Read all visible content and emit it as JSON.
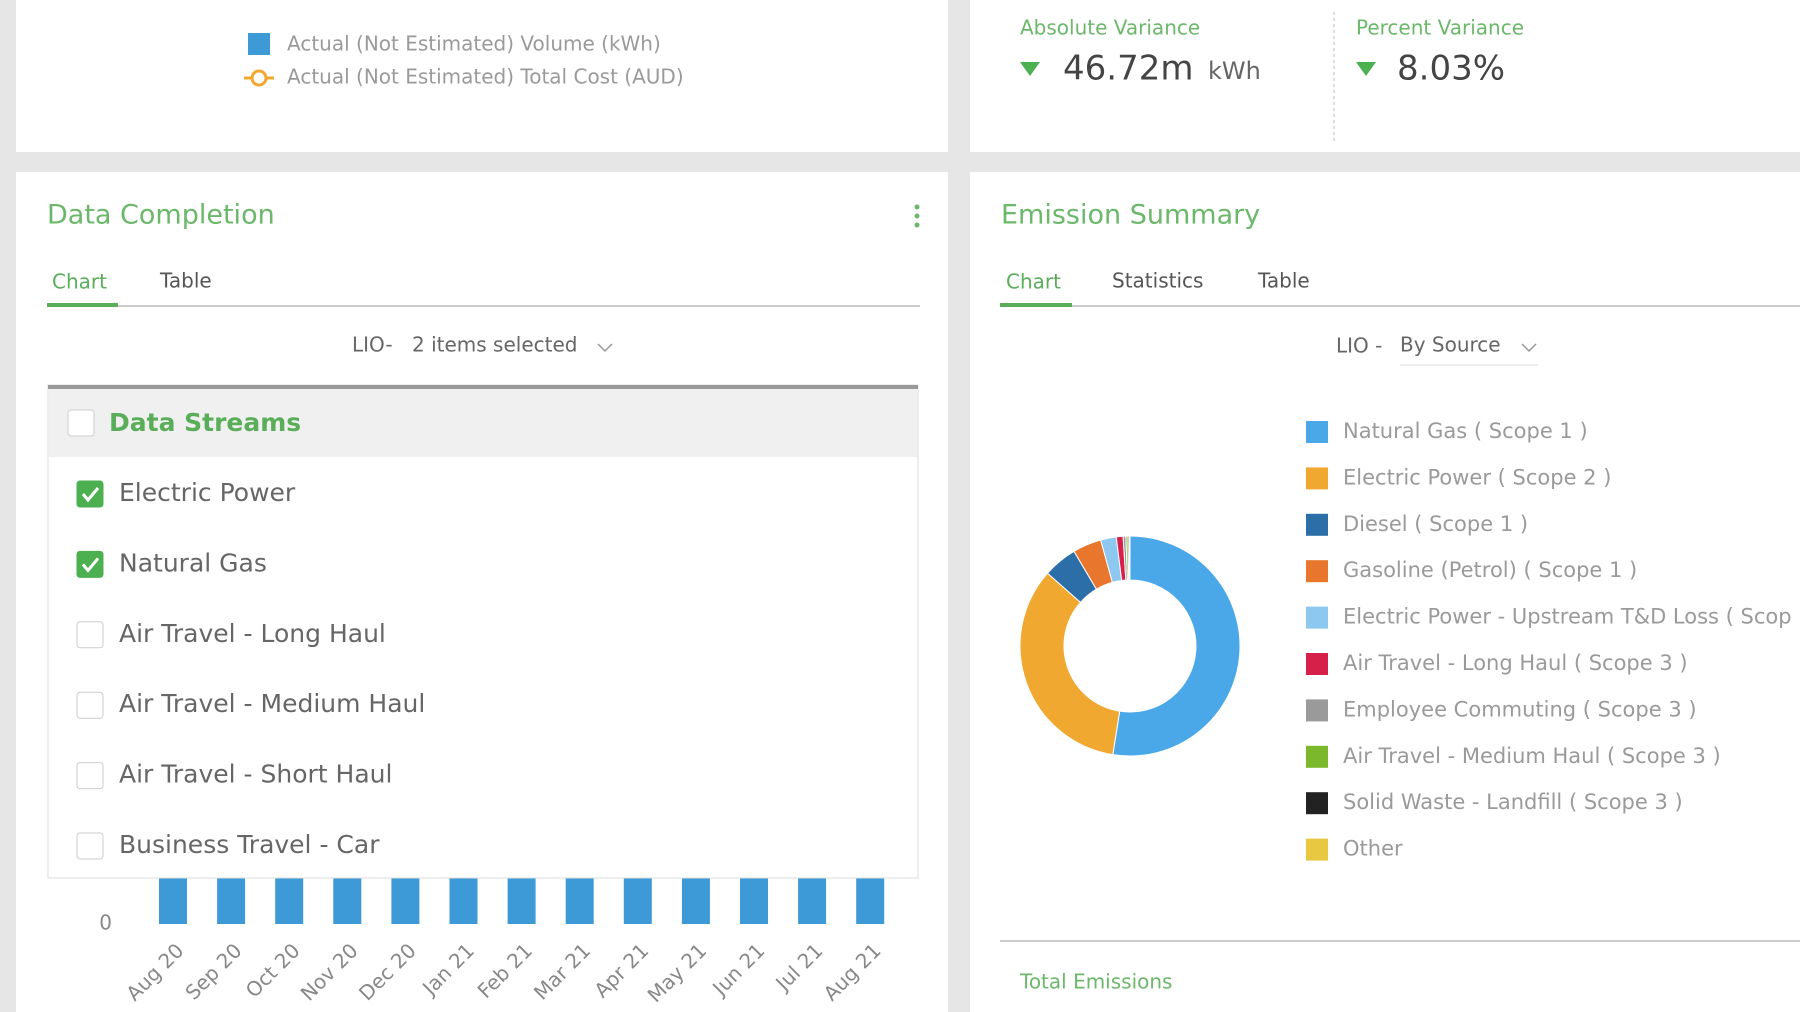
{
  "top_left": {
    "legend": [
      "Actual (Not Estimated) Volume (kWh)",
      "Actual (Not Estimated) Total Cost (AUD)"
    ]
  },
  "variance": {
    "absolute": {
      "label": "Absolute Variance",
      "value": "46.72m",
      "unit": "kWh"
    },
    "percent": {
      "label": "Percent Variance",
      "value": "8.03%"
    }
  },
  "data_completion": {
    "title": "Data Completion",
    "tabs": [
      "Chart",
      "Table"
    ],
    "filter_label": "LIO-",
    "filter_value": "2 items selected",
    "dropdown": {
      "header": "Data Streams",
      "items": [
        {
          "label": "Electric Power",
          "checked": true
        },
        {
          "label": "Natural Gas",
          "checked": true
        },
        {
          "label": "Air Travel - Long Haul",
          "checked": false
        },
        {
          "label": "Air Travel - Medium Haul",
          "checked": false
        },
        {
          "label": "Air Travel - Short Haul",
          "checked": false
        },
        {
          "label": "Business Travel - Car",
          "checked": false
        }
      ]
    },
    "chart": {
      "type": "bar",
      "categories": [
        "Aug 20",
        "Sep 20",
        "Oct 20",
        "Nov 20",
        "Dec 20",
        "Jan 21",
        "Feb 21",
        "Mar 21",
        "Apr 21",
        "May 21",
        "Jun 21",
        "Jul 21",
        "Aug 21"
      ],
      "values": [
        100,
        100,
        100,
        100,
        100,
        100,
        100,
        100,
        100,
        100,
        100,
        100,
        100
      ],
      "color": "#3d9ad6",
      "ylim": [
        0,
        120
      ],
      "yticks": [
        0
      ]
    }
  },
  "emission_summary": {
    "title": "Emission Summary",
    "tabs": [
      "Chart",
      "Statistics",
      "Table"
    ],
    "filter_label": "LIO -",
    "filter_value": "By Source",
    "chart": {
      "type": "donut",
      "categories": [
        "Natural Gas ( Scope 1 )",
        "Electric Power ( Scope 2 )",
        "Diesel ( Scope 1 )",
        "Gasoline (Petrol) ( Scope 1 )",
        "Electric Power - Upstream T&D Loss ( Scop",
        "Air Travel - Long Haul ( Scope 3 )",
        "Employee Commuting ( Scope 3 )",
        "Air Travel - Medium Haul ( Scope 3 )",
        "Solid Waste - Landfill ( Scope 3 )",
        "Other"
      ],
      "values": [
        52.5,
        34,
        5,
        4.2,
        2.3,
        1,
        0.4,
        0.3,
        0.2,
        0.1
      ],
      "colors": [
        "#4aa8e8",
        "#f0a830",
        "#2c6fa8",
        "#e8762c",
        "#8cc8f0",
        "#d6204a",
        "#9a9a9a",
        "#7cb82c",
        "#222222",
        "#e8c840"
      ]
    },
    "total_label": "Total Emissions"
  }
}
